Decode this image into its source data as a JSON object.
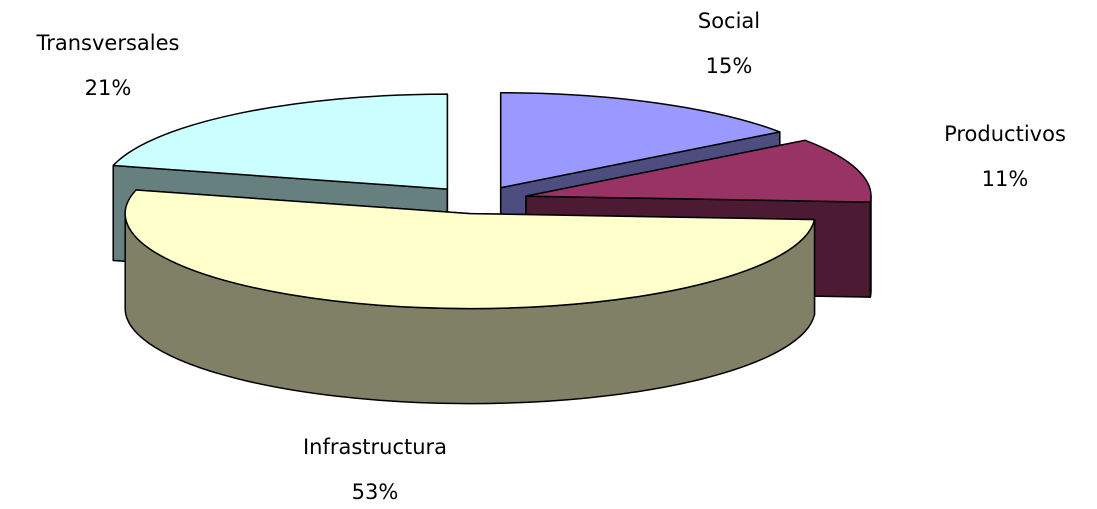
{
  "chart_data": {
    "type": "pie3d",
    "categories": [
      "Social",
      "Productivos",
      "Infrastructura",
      "Transversales"
    ],
    "values": [
      15,
      11,
      53,
      21
    ],
    "value_labels": [
      "15%",
      "11%",
      "53%",
      "21%"
    ],
    "colors": [
      "#9999ff",
      "#993366",
      "#ffffcc",
      "#ccffff"
    ]
  }
}
